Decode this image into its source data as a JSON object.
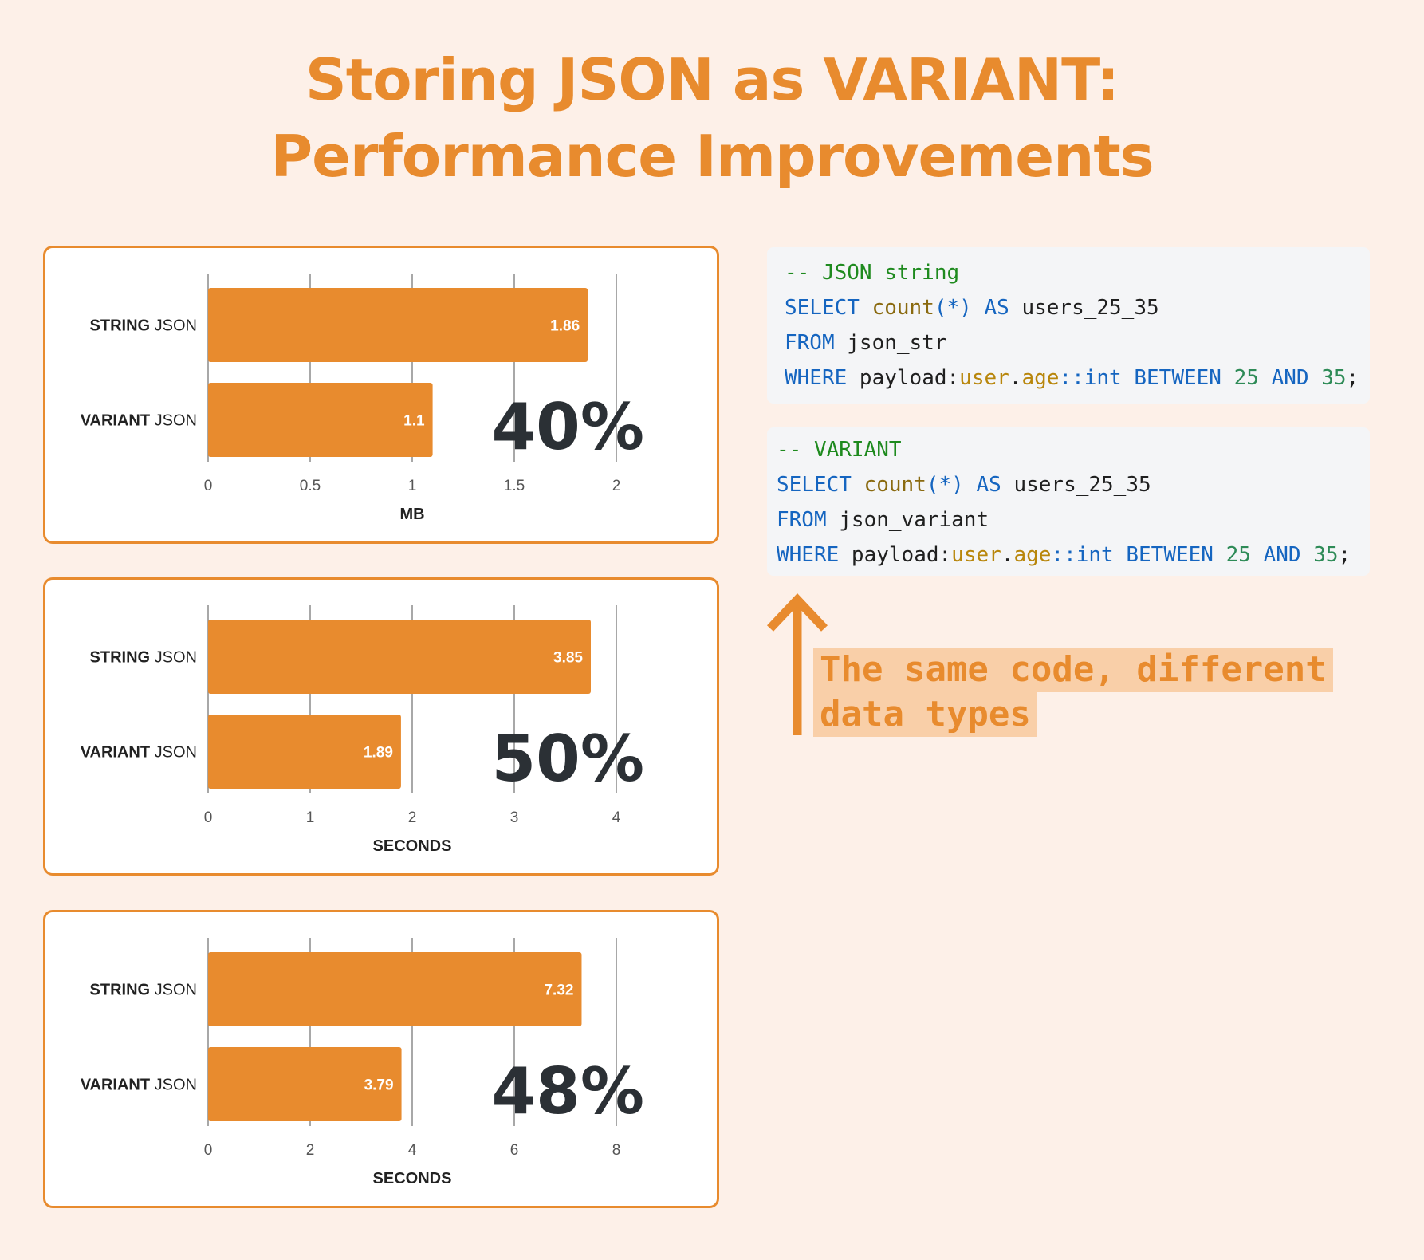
{
  "title": {
    "line1": "Storing JSON as VARIANT:",
    "line2": "Performance Improvements"
  },
  "colors": {
    "accent": "#e88b2e",
    "background": "#fdf0e8",
    "percent_text": "#2b3035"
  },
  "chart_data": [
    {
      "type": "bar",
      "orientation": "horizontal",
      "categories": [
        "STRING JSON",
        "VARIANT JSON"
      ],
      "values": [
        1.86,
        1.1
      ],
      "data_labels": [
        "1.86",
        "1.1"
      ],
      "xlabel": "MB",
      "xlim": [
        0,
        2
      ],
      "ticks": [
        0,
        0.5,
        1,
        1.5,
        2
      ],
      "tick_labels": [
        "0",
        "0.5",
        "1",
        "1.5",
        "2"
      ],
      "grid": true,
      "annotation": "40%"
    },
    {
      "type": "bar",
      "orientation": "horizontal",
      "categories": [
        "STRING JSON",
        "VARIANT JSON"
      ],
      "values": [
        3.85,
        1.89
      ],
      "data_labels": [
        "3.85",
        "1.89"
      ],
      "xlabel": "SECONDS",
      "xlim": [
        0,
        4
      ],
      "ticks": [
        0,
        1,
        2,
        3,
        4
      ],
      "tick_labels": [
        "0",
        "1",
        "2",
        "3",
        "4"
      ],
      "grid": true,
      "annotation": "50%"
    },
    {
      "type": "bar",
      "orientation": "horizontal",
      "categories": [
        "STRING JSON",
        "VARIANT JSON"
      ],
      "values": [
        7.32,
        3.79
      ],
      "data_labels": [
        "7.32",
        "3.79"
      ],
      "xlabel": "SECONDS",
      "xlim": [
        0,
        8
      ],
      "ticks": [
        0,
        2,
        4,
        6,
        8
      ],
      "tick_labels": [
        "0",
        "2",
        "4",
        "6",
        "8"
      ],
      "grid": true,
      "annotation": "48%"
    }
  ],
  "code_blocks": [
    {
      "lines": [
        [
          {
            "t": "-- JSON string",
            "c": "cm"
          }
        ],
        [
          {
            "t": "SELECT",
            "c": "kw"
          },
          {
            "t": " "
          },
          {
            "t": "count",
            "c": "fn"
          },
          {
            "t": "(*)",
            "c": "kw"
          },
          {
            "t": " "
          },
          {
            "t": "AS",
            "c": "kw"
          },
          {
            "t": " users_25_35"
          }
        ],
        [
          {
            "t": "FROM",
            "c": "kw"
          },
          {
            "t": " json_str"
          }
        ],
        [
          {
            "t": "WHERE",
            "c": "kw"
          },
          {
            "t": " payload:"
          },
          {
            "t": "user",
            "c": "pa"
          },
          {
            "t": "."
          },
          {
            "t": "age",
            "c": "pa"
          },
          {
            "t": "::int",
            "c": "kw"
          },
          {
            "t": " "
          },
          {
            "t": "BETWEEN",
            "c": "kw"
          },
          {
            "t": " "
          },
          {
            "t": "25",
            "c": "nm"
          },
          {
            "t": " "
          },
          {
            "t": "AND",
            "c": "kw"
          },
          {
            "t": " "
          },
          {
            "t": "35",
            "c": "nm"
          },
          {
            "t": ";"
          }
        ]
      ]
    },
    {
      "lines": [
        [
          {
            "t": "-- VARIANT",
            "c": "cm"
          }
        ],
        [
          {
            "t": "SELECT",
            "c": "kw"
          },
          {
            "t": " "
          },
          {
            "t": "count",
            "c": "fn"
          },
          {
            "t": "(*)",
            "c": "kw"
          },
          {
            "t": " "
          },
          {
            "t": "AS",
            "c": "kw"
          },
          {
            "t": " users_25_35"
          }
        ],
        [
          {
            "t": "FROM",
            "c": "kw"
          },
          {
            "t": " json_variant"
          }
        ],
        [
          {
            "t": "WHERE",
            "c": "kw"
          },
          {
            "t": " payload:"
          },
          {
            "t": "user",
            "c": "pa"
          },
          {
            "t": "."
          },
          {
            "t": "age",
            "c": "pa"
          },
          {
            "t": "::int",
            "c": "kw"
          },
          {
            "t": " "
          },
          {
            "t": "BETWEEN",
            "c": "kw"
          },
          {
            "t": " "
          },
          {
            "t": "25",
            "c": "nm"
          },
          {
            "t": " "
          },
          {
            "t": "AND",
            "c": "kw"
          },
          {
            "t": " "
          },
          {
            "t": "35",
            "c": "nm"
          },
          {
            "t": ";"
          }
        ]
      ]
    }
  ],
  "annotation": {
    "line1": "The same code, different",
    "line2": "data types",
    "icon": "arrow-up-icon"
  }
}
